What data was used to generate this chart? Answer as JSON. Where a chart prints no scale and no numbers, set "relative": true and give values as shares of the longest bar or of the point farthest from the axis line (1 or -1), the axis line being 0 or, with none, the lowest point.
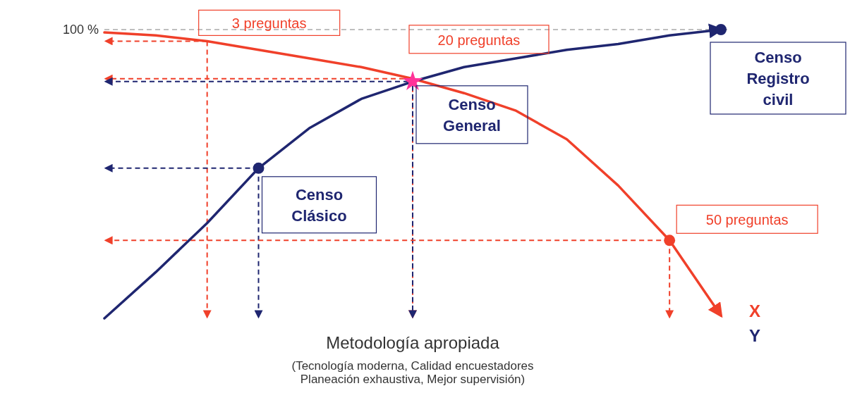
{
  "chart_data": {
    "type": "line",
    "relative": true,
    "marker": "none",
    "line_style": "solid",
    "categories": [
      null,
      null,
      null,
      null,
      null,
      null,
      null,
      null,
      null,
      null,
      null,
      null,
      null
    ],
    "xlabel": "Metodología apropiada",
    "series": [
      {
        "name": "X",
        "color": "#f0402a",
        "values": [
          0.99,
          0.98,
          0.96,
          0.93,
          0.9,
          0.87,
          0.83,
          0.78,
          0.72,
          0.62,
          0.46,
          0.27,
          0.01
        ]
      },
      {
        "name": "Y",
        "color": "#1f2670",
        "values": [
          0,
          0.16,
          0.33,
          0.52,
          0.66,
          0.76,
          0.82,
          0.87,
          0.9,
          0.93,
          0.95,
          0.98,
          1
        ]
      }
    ],
    "ref_lines": [
      {
        "axis": "y",
        "value": 1,
        "label": "100 %",
        "color": "#aaaaaa",
        "line_style": "dashed"
      }
    ],
    "annotations": [
      "3 preguntas",
      "20 preguntas",
      "50 preguntas",
      "Censo Clásico",
      "Censo General",
      "Censo Registro civil",
      "(Tecnología moderna, Calidad encuestadores Planeación exhaustiva, Mejor supervisión)"
    ]
  }
}
